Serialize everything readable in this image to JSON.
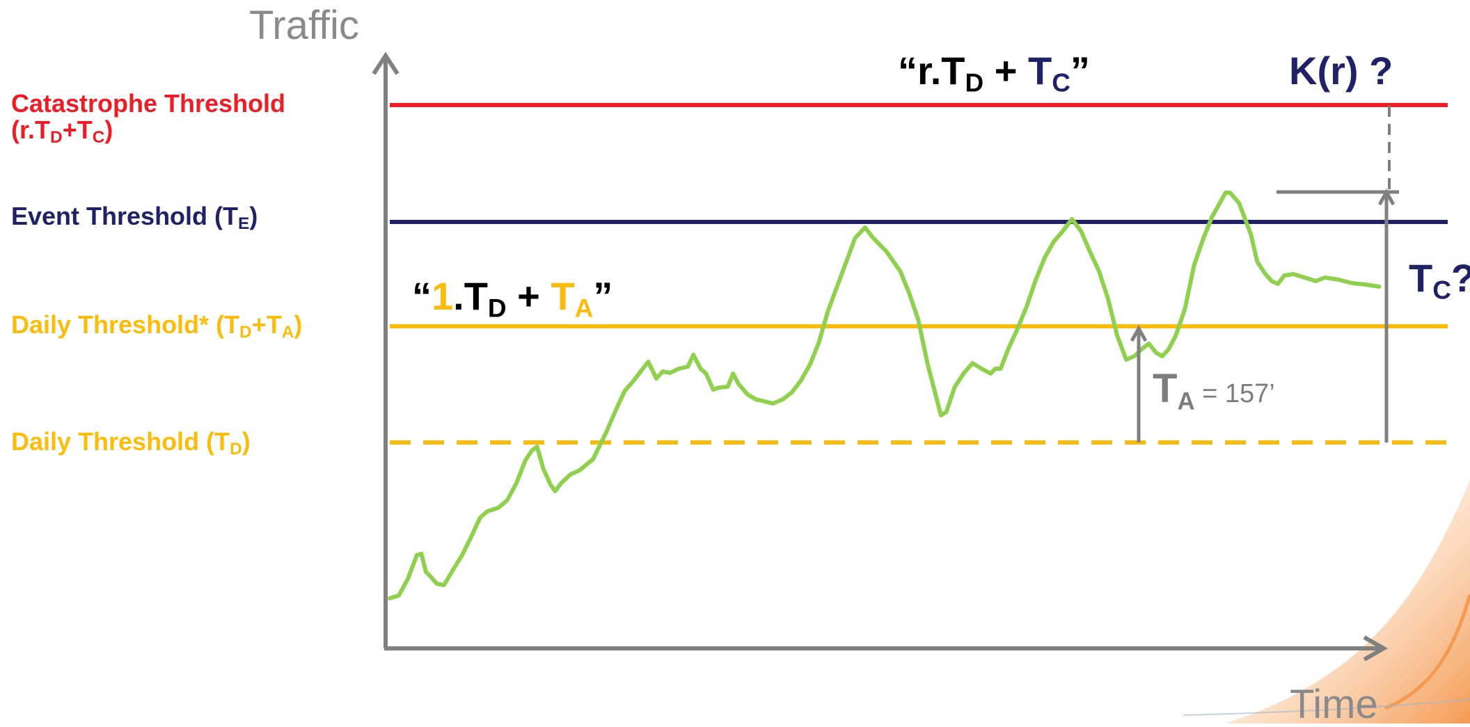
{
  "axes": {
    "y_title": "Traffic",
    "x_title": "Time"
  },
  "legend": {
    "catastrophe": {
      "label": "Catastrophe Threshold",
      "formula_prefix": "(r.T",
      "sub1": "D",
      "mid": "+T",
      "sub2": "C",
      "suffix": ")"
    },
    "event": {
      "prefix": "Event Threshold (T",
      "sub": "E",
      "suffix": ")"
    },
    "daily_plus": {
      "prefix": "Daily Threshold* (T",
      "sub1": "D",
      "mid": "+T",
      "sub2": "A",
      "suffix": ")"
    },
    "daily": {
      "prefix": "Daily Threshold (T",
      "sub": "D",
      "suffix": ")"
    }
  },
  "annotations": {
    "top_formula": {
      "open": "“r.T",
      "sub1": "D",
      "plus": " + ",
      "tc": "T",
      "sub2": "C",
      "close": "”"
    },
    "kr": "K(r) ?",
    "tc_question": {
      "t": "T",
      "sub": "C",
      "q": "?"
    },
    "mid_formula": {
      "open": "“",
      "one": "1",
      "dot_t": ".T",
      "sub1": "D",
      "plus": " + ",
      "ta": "T",
      "sub2": "A",
      "close": "”"
    },
    "ta": {
      "t": "T",
      "sub": "A",
      "value": " = 157’"
    }
  },
  "colors": {
    "catastrophe": "#ee1c24",
    "event": "#1f2266",
    "daily": "#fbbc0b",
    "traffic": "#8fd14f",
    "axis": "#808080",
    "corner_accent": "#f59a52"
  },
  "traffic_series": [
    [
      0,
      72
    ],
    [
      1,
      76
    ],
    [
      2,
      100
    ],
    [
      3,
      134
    ],
    [
      3.5,
      136
    ],
    [
      4,
      110
    ],
    [
      4.6,
      102
    ],
    [
      5.2,
      93
    ],
    [
      6,
      91
    ],
    [
      7,
      113
    ],
    [
      8,
      134
    ],
    [
      9,
      160
    ],
    [
      10,
      188
    ],
    [
      10.8,
      197
    ],
    [
      12,
      202
    ],
    [
      13,
      213
    ],
    [
      14,
      237
    ],
    [
      15,
      270
    ],
    [
      15.7,
      284
    ],
    [
      16.3,
      290
    ],
    [
      17,
      258
    ],
    [
      17.8,
      235
    ],
    [
      18.3,
      226
    ],
    [
      19,
      238
    ],
    [
      20,
      250
    ],
    [
      21,
      256
    ],
    [
      22.5,
      272
    ],
    [
      24,
      312
    ],
    [
      25,
      342
    ],
    [
      26,
      370
    ],
    [
      27,
      385
    ],
    [
      28,
      402
    ],
    [
      28.6,
      412
    ],
    [
      29.5,
      388
    ],
    [
      30.2,
      398
    ],
    [
      31,
      396
    ],
    [
      32,
      402
    ],
    [
      33,
      405
    ],
    [
      33.6,
      422
    ],
    [
      34.4,
      402
    ],
    [
      35,
      395
    ],
    [
      35.8,
      372
    ],
    [
      36.5,
      375
    ],
    [
      37.4,
      376
    ],
    [
      38,
      395
    ],
    [
      38.6,
      380
    ],
    [
      39.6,
      365
    ],
    [
      40.5,
      358
    ],
    [
      41.5,
      355
    ],
    [
      42.4,
      352
    ],
    [
      43.5,
      358
    ],
    [
      44.5,
      368
    ],
    [
      45.5,
      385
    ],
    [
      46.5,
      408
    ],
    [
      47.5,
      440
    ],
    [
      48.5,
      485
    ],
    [
      49.5,
      520
    ],
    [
      50.5,
      555
    ],
    [
      51.5,
      590
    ],
    [
      52.6,
      605
    ],
    [
      53.5,
      590
    ],
    [
      55,
      570
    ],
    [
      56.5,
      542
    ],
    [
      57.5,
      510
    ],
    [
      58.5,
      472
    ],
    [
      59.5,
      410
    ],
    [
      60.5,
      360
    ],
    [
      61,
      335
    ],
    [
      61.6,
      340
    ],
    [
      62.5,
      375
    ],
    [
      63.5,
      395
    ],
    [
      64.5,
      410
    ],
    [
      65.5,
      402
    ],
    [
      66.5,
      395
    ],
    [
      67,
      402
    ],
    [
      67.6,
      402
    ],
    [
      68.5,
      432
    ],
    [
      69.5,
      460
    ],
    [
      70.5,
      492
    ],
    [
      71.5,
      530
    ],
    [
      72.5,
      562
    ],
    [
      73.5,
      585
    ],
    [
      74.5,
      600
    ],
    [
      75.5,
      617
    ],
    [
      76.5,
      600
    ],
    [
      77.5,
      570
    ],
    [
      78.5,
      542
    ],
    [
      79.5,
      502
    ],
    [
      80.5,
      450
    ],
    [
      81.5,
      415
    ],
    [
      82.4,
      420
    ],
    [
      83.2,
      430
    ],
    [
      84,
      438
    ],
    [
      84.8,
      425
    ],
    [
      85.5,
      420
    ],
    [
      86.2,
      430
    ],
    [
      87,
      450
    ],
    [
      88,
      488
    ],
    [
      89,
      550
    ],
    [
      90,
      588
    ],
    [
      91,
      620
    ],
    [
      92.5,
      655
    ],
    [
      93,
      655
    ],
    [
      94,
      640
    ],
    [
      95.3,
      595
    ],
    [
      96,
      556
    ],
    [
      96.8,
      540
    ],
    [
      97.6,
      528
    ],
    [
      98.3,
      524
    ],
    [
      99,
      536
    ],
    [
      100,
      538
    ],
    [
      101.5,
      532
    ],
    [
      102.5,
      528
    ],
    [
      103.5,
      533
    ],
    [
      105,
      530
    ],
    [
      106.5,
      525
    ],
    [
      108,
      523
    ],
    [
      109.5,
      520
    ]
  ]
}
